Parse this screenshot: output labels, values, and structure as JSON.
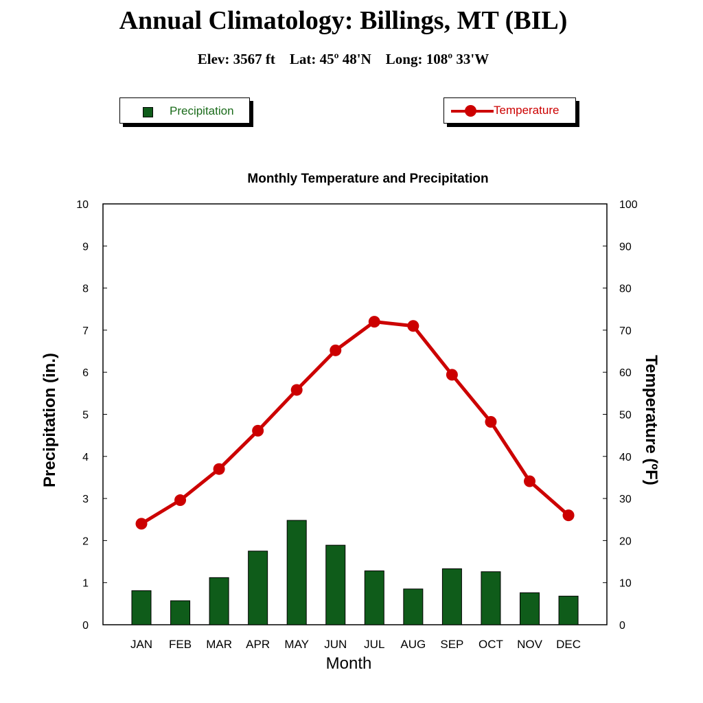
{
  "header": {
    "title": "Annual Climatology: Billings, MT (BIL)",
    "subtitle": "Elev: 3567 ft    Lat: 45º 48'N    Long: 108º 33'W"
  },
  "legend": {
    "precipitation_label": "Precipitation",
    "temperature_label": "Temperature"
  },
  "chart_data": {
    "type": "bar",
    "title": "Monthly Temperature and Precipitation",
    "xlabel": "Month",
    "ylabel": "Precipitation (in.)",
    "y2label": "Temperature (ºF)",
    "categories": [
      "JAN",
      "FEB",
      "MAR",
      "APR",
      "MAY",
      "JUN",
      "JUL",
      "AUG",
      "SEP",
      "OCT",
      "NOV",
      "DEC"
    ],
    "ylim": [
      0,
      10
    ],
    "y2lim": [
      0,
      100
    ],
    "yticks": [
      0,
      1,
      2,
      3,
      4,
      5,
      6,
      7,
      8,
      9,
      10
    ],
    "y2ticks": [
      0,
      10,
      20,
      30,
      40,
      50,
      60,
      70,
      80,
      90,
      100
    ],
    "grid": false,
    "legend_position": "top",
    "series": [
      {
        "name": "Precipitation",
        "type": "bar",
        "axis": "left",
        "color": "#0f5c1a",
        "values": [
          0.81,
          0.57,
          1.12,
          1.75,
          2.48,
          1.89,
          1.28,
          0.85,
          1.33,
          1.26,
          0.76,
          0.68
        ]
      },
      {
        "name": "Temperature",
        "type": "line",
        "axis": "right",
        "color": "#cc0000",
        "values": [
          24,
          29.6,
          37,
          46.1,
          55.8,
          65.2,
          72,
          71,
          59.4,
          48.2,
          34.1,
          26
        ]
      }
    ]
  }
}
